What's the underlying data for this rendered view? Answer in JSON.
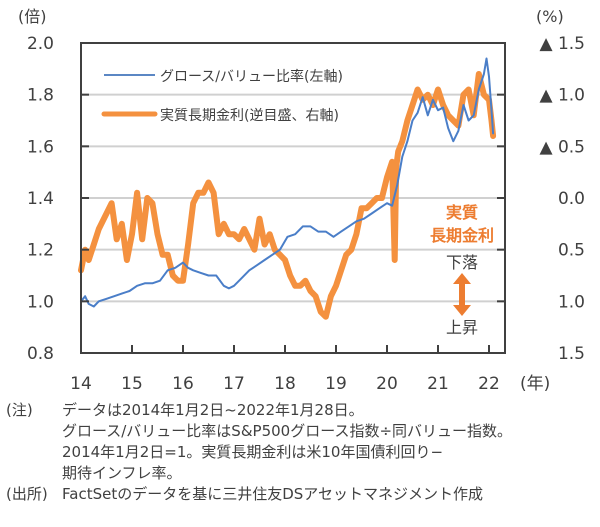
{
  "chart_data": {
    "type": "line",
    "title": "",
    "xlabel": "(年)",
    "ylabel_left": "(倍)",
    "ylabel_right": "(%)",
    "x_ticks": [
      "14",
      "15",
      "16",
      "17",
      "18",
      "19",
      "20",
      "21",
      "22"
    ],
    "x_range": [
      2014.0,
      2022.3
    ],
    "y_left_ticks": [
      "0.8",
      "1.0",
      "1.2",
      "1.4",
      "1.6",
      "1.8",
      "2.0"
    ],
    "y_left_range": [
      0.8,
      2.0
    ],
    "y_right_ticks": [
      "▲ 1.5",
      "▲ 1.0",
      "▲ 0.5",
      "0.0",
      "0.5",
      "1.0",
      "1.5"
    ],
    "y_right_range": [
      -1.5,
      1.5
    ],
    "y_right_inverted": true,
    "grid": true,
    "legend_position": "top-left",
    "series": [
      {
        "name": "グロース/バリュー比率(左軸)",
        "axis": "left",
        "color": "#4a7ec8",
        "x": [
          2014.0,
          2014.08,
          2014.15,
          2014.25,
          2014.35,
          2014.5,
          2014.65,
          2014.8,
          2014.95,
          2015.1,
          2015.25,
          2015.4,
          2015.55,
          2015.7,
          2015.85,
          2016.0,
          2016.1,
          2016.2,
          2016.35,
          2016.5,
          2016.65,
          2016.8,
          2016.9,
          2017.0,
          2017.15,
          2017.3,
          2017.45,
          2017.6,
          2017.75,
          2017.9,
          2018.05,
          2018.2,
          2018.35,
          2018.5,
          2018.65,
          2018.8,
          2018.95,
          2019.1,
          2019.25,
          2019.4,
          2019.55,
          2019.7,
          2019.85,
          2020.0,
          2020.1,
          2020.2,
          2020.3,
          2020.4,
          2020.5,
          2020.6,
          2020.7,
          2020.8,
          2020.9,
          2021.0,
          2021.1,
          2021.2,
          2021.3,
          2021.4,
          2021.5,
          2021.6,
          2021.7,
          2021.8,
          2021.9,
          2021.95,
          2022.0,
          2022.05,
          2022.08
        ],
        "values": [
          1.0,
          1.02,
          0.99,
          0.98,
          1.0,
          1.01,
          1.02,
          1.03,
          1.04,
          1.06,
          1.07,
          1.07,
          1.08,
          1.12,
          1.13,
          1.15,
          1.13,
          1.12,
          1.11,
          1.1,
          1.1,
          1.06,
          1.05,
          1.06,
          1.09,
          1.12,
          1.14,
          1.16,
          1.18,
          1.2,
          1.25,
          1.26,
          1.29,
          1.29,
          1.27,
          1.27,
          1.25,
          1.27,
          1.29,
          1.31,
          1.32,
          1.34,
          1.36,
          1.38,
          1.37,
          1.45,
          1.56,
          1.62,
          1.7,
          1.73,
          1.79,
          1.72,
          1.78,
          1.74,
          1.75,
          1.67,
          1.62,
          1.66,
          1.76,
          1.7,
          1.72,
          1.82,
          1.88,
          1.94,
          1.87,
          1.74,
          1.65
        ]
      },
      {
        "name": "実質長期金利(逆目盛、右軸)",
        "axis": "right",
        "color": "#f4913f",
        "x": [
          2014.0,
          2014.08,
          2014.15,
          2014.25,
          2014.35,
          2014.5,
          2014.6,
          2014.7,
          2014.8,
          2014.9,
          2015.0,
          2015.1,
          2015.2,
          2015.3,
          2015.4,
          2015.5,
          2015.6,
          2015.7,
          2015.8,
          2015.9,
          2016.0,
          2016.1,
          2016.2,
          2016.3,
          2016.4,
          2016.5,
          2016.6,
          2016.7,
          2016.8,
          2016.9,
          2017.0,
          2017.1,
          2017.2,
          2017.3,
          2017.4,
          2017.5,
          2017.6,
          2017.7,
          2017.8,
          2017.9,
          2018.0,
          2018.1,
          2018.2,
          2018.3,
          2018.4,
          2018.5,
          2018.6,
          2018.7,
          2018.8,
          2018.9,
          2019.0,
          2019.1,
          2019.2,
          2019.3,
          2019.4,
          2019.5,
          2019.6,
          2019.7,
          2019.8,
          2019.9,
          2020.0,
          2020.1,
          2020.15,
          2020.18,
          2020.22,
          2020.3,
          2020.4,
          2020.5,
          2020.6,
          2020.7,
          2020.8,
          2020.9,
          2021.0,
          2021.1,
          2021.2,
          2021.3,
          2021.4,
          2021.5,
          2021.6,
          2021.7,
          2021.8,
          2021.9,
          2022.0,
          2022.05,
          2022.08
        ],
        "values": [
          0.7,
          0.5,
          0.6,
          0.45,
          0.3,
          0.15,
          0.05,
          0.4,
          0.25,
          0.6,
          0.35,
          -0.05,
          0.4,
          0.0,
          0.05,
          0.35,
          0.55,
          0.55,
          0.75,
          0.8,
          0.8,
          0.45,
          0.05,
          -0.05,
          -0.05,
          -0.15,
          -0.05,
          0.35,
          0.25,
          0.35,
          0.35,
          0.4,
          0.3,
          0.4,
          0.5,
          0.2,
          0.45,
          0.35,
          0.5,
          0.55,
          0.6,
          0.75,
          0.85,
          0.85,
          0.8,
          0.9,
          0.95,
          1.1,
          1.15,
          0.95,
          0.85,
          0.7,
          0.55,
          0.5,
          0.35,
          0.1,
          0.1,
          0.05,
          0.0,
          0.0,
          -0.2,
          -0.35,
          0.6,
          -0.3,
          -0.45,
          -0.55,
          -0.75,
          -0.9,
          -1.05,
          -0.95,
          -1.0,
          -0.9,
          -1.05,
          -0.9,
          -0.8,
          -0.75,
          -0.7,
          -1.0,
          -1.05,
          -0.8,
          -1.2,
          -1.0,
          -0.95,
          -0.75,
          -0.6
        ]
      }
    ]
  },
  "axes": {
    "left_unit": "(倍)",
    "right_unit": "(%)",
    "x_unit": "(年)"
  },
  "legend": {
    "items": [
      {
        "label": "グロース/バリュー比率(左軸)",
        "color": "#5b87c4"
      },
      {
        "label": "実質長期金利(逆目盛、右軸)",
        "color": "#f4913f"
      }
    ]
  },
  "annotations": {
    "title_line1": "実質",
    "title_line2": "長期金利",
    "down_label": "下落",
    "up_label": "上昇",
    "arrow_color": "#ed7d31"
  },
  "notes": {
    "note_head": "(注)",
    "note_lines": [
      "データは2014年1月2日~2022年1月28日。",
      "グロース/バリュー比率はS&P500グロース指数÷同バリュー指数。",
      "2014年1月2日=1。実質長期金利は米10年国債利回り−",
      "期待インフレ率。"
    ],
    "source_head": "(出所)",
    "source_text": "FactSetのデータを基に三井住友DSアセットマネジメント作成"
  }
}
